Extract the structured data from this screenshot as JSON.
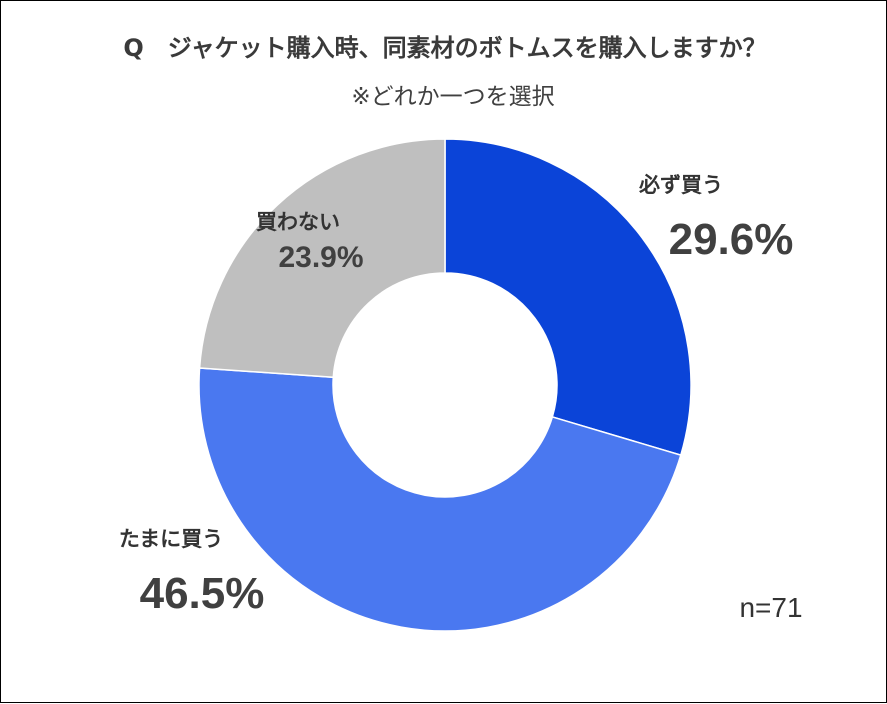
{
  "chart_data": {
    "type": "pie",
    "title": "Q　ジャケット購入時、同素材のボトムスを購入しますか？",
    "subtitle": "※どれか一つを選択",
    "categories": [
      "必ず買う",
      "たまに買う",
      "買わない"
    ],
    "values": [
      29.6,
      46.5,
      23.9
    ],
    "value_labels": [
      "29.6%",
      "46.5%",
      "23.9%"
    ],
    "colors": [
      "#0b44d8",
      "#4a78f0",
      "#bfbfbf"
    ],
    "note": "n=71",
    "donut": true,
    "start": "top, clockwise"
  }
}
